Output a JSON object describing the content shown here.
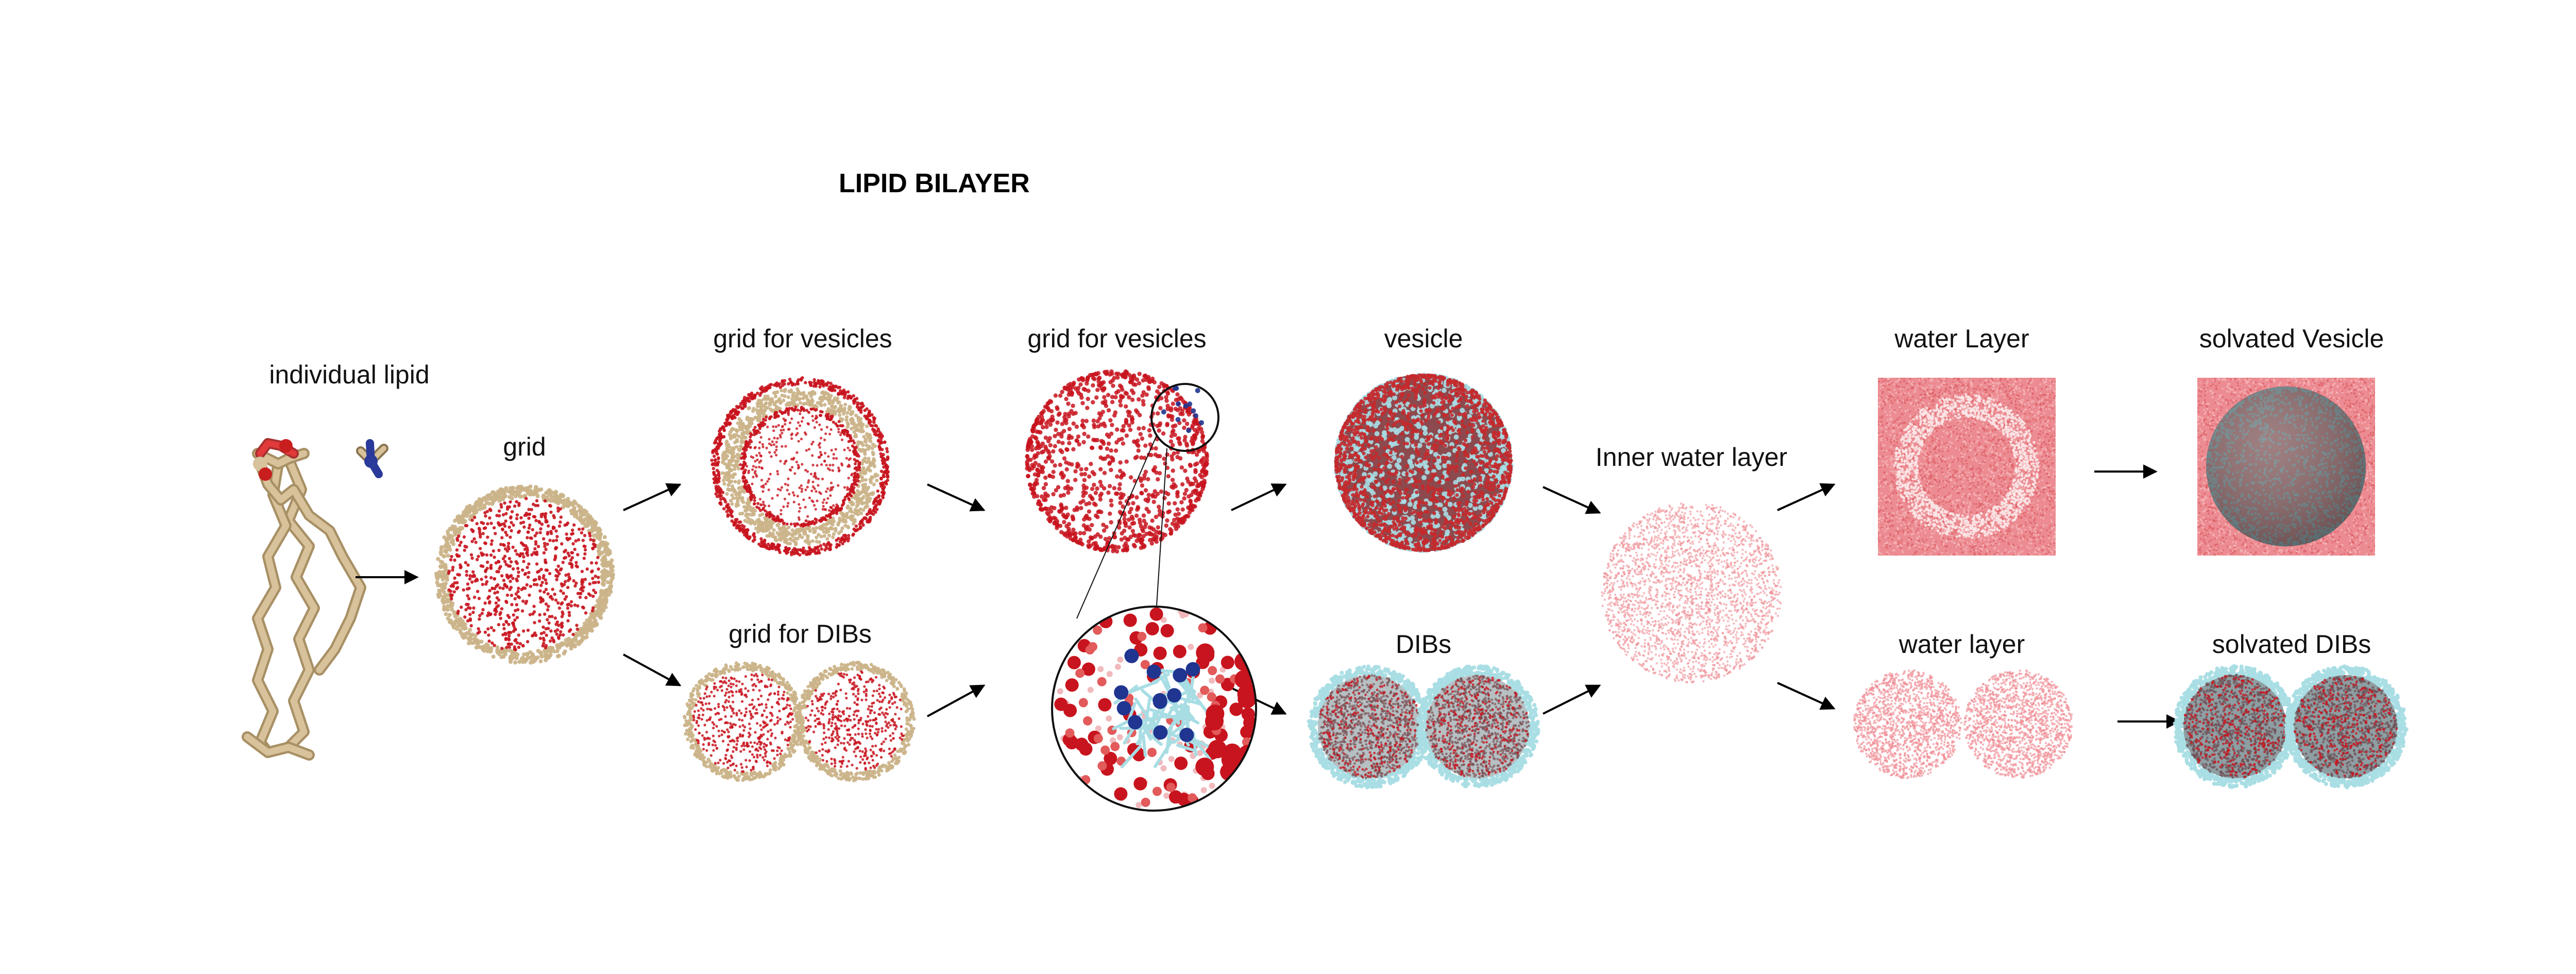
{
  "title": "LIPID BILAYER",
  "labels": {
    "individual_lipid": "individual lipid",
    "grid": "grid",
    "grid_vesicles_1": "grid for vesicles",
    "grid_vesicles_2": "grid for vesicles",
    "vesicle": "vesicle",
    "grid_dibs": "grid for DIBs",
    "dibs": "DIBs",
    "inner_water": "Inner water layer",
    "water_layer_top": "water Layer",
    "water_layer_bottom": "water layer",
    "solvated_vesicle": "solvated Vesicle",
    "solvated_dibs": "solvated DIBs"
  },
  "colors": {
    "lipid_tan": "#cbb48a",
    "head_red": "#c8141e",
    "water_pink": "#ef8e95",
    "water_light": "#f7c9cc",
    "tail_cyan": "#a8dde4",
    "nitrogen_blue": "#1f3590",
    "arrow": "#000000"
  },
  "icons": [
    "lipid-molecule-icon",
    "arrow-icon",
    "magnifier-circle-icon"
  ]
}
